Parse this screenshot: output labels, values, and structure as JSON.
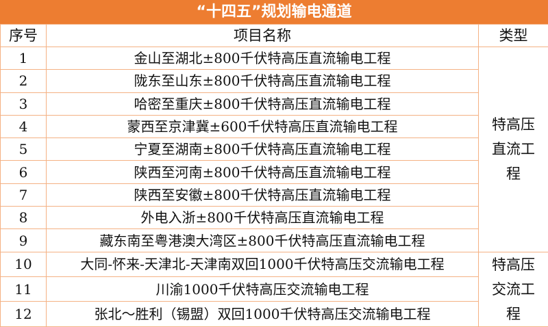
{
  "title": "“十四五”规划输电通道",
  "headers": {
    "index": "序号",
    "name": "项目名称",
    "type": "类型"
  },
  "accent_color": "#ED7D31",
  "rows": [
    {
      "index": "1",
      "name": "金山至湖北±800千伏特高压直流输电工程"
    },
    {
      "index": "2",
      "name": "陇东至山东±800千伏特高压直流输电工程"
    },
    {
      "index": "3",
      "name": "哈密至重庆±800千伏特高压直流输电工程"
    },
    {
      "index": "4",
      "name": "蒙西至京津冀±600千伏特高压直流输电工程"
    },
    {
      "index": "5",
      "name": "宁夏至湖南±800千伏特高压直流输电工程"
    },
    {
      "index": "6",
      "name": "陕西至河南±800千伏特高压直流输电工程"
    },
    {
      "index": "7",
      "name": "陕西至安徽±800千伏特高压直流输电工程"
    },
    {
      "index": "8",
      "name": "外电入浙±800千伏特高压直流输电工程"
    },
    {
      "index": "9",
      "name": "藏东南至粤港澳大湾区±800千伏特高压直流输电工程"
    },
    {
      "index": "10",
      "name": "大同-怀来-天津北-天津南双回1000千伏特高压交流输电工程"
    },
    {
      "index": "11",
      "name": "川渝1000千伏特高压交流输电工程"
    },
    {
      "index": "12",
      "name": "张北～胜利（锡盟）双回1000千伏特高压交流输电工程"
    }
  ],
  "types": {
    "dc": "特高压直流工程",
    "ac": "特高压交流工程"
  }
}
